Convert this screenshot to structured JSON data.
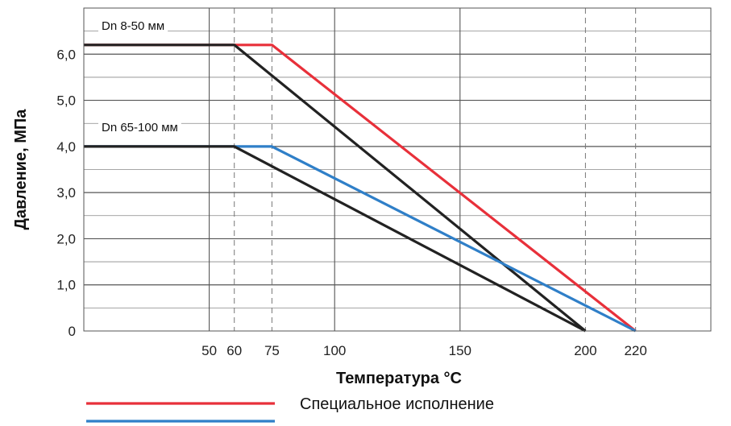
{
  "chart_data": {
    "type": "line",
    "title": "",
    "xlabel": "Температура °C",
    "ylabel": "Давление, МПа",
    "xlim": [
      0,
      250
    ],
    "ylim": [
      0,
      7
    ],
    "x_ticks": [
      50,
      60,
      75,
      100,
      150,
      200,
      220
    ],
    "y_ticks": [
      {
        "value": 0,
        "label": "0"
      },
      {
        "value": 1,
        "label": "1,0"
      },
      {
        "value": 2,
        "label": "2,0"
      },
      {
        "value": 3,
        "label": "3,0"
      },
      {
        "value": 4,
        "label": "4,0"
      },
      {
        "value": 5,
        "label": "5,0"
      },
      {
        "value": 6,
        "label": "6,0"
      }
    ],
    "grid": true,
    "annotations": [
      {
        "text": "Dn 8-50 мм",
        "x": 0,
        "y": 6.2
      },
      {
        "text": "Dn 65-100 мм",
        "x": 0,
        "y": 4.0
      }
    ],
    "series": [
      {
        "name": "Специальное исполнение",
        "group": "Dn 8-50 мм",
        "color": "#e8303a",
        "x": [
          0,
          75,
          220
        ],
        "y": [
          6.2,
          6.2,
          0
        ]
      },
      {
        "group": "Dn 8-50 мм",
        "color": "#222222",
        "x": [
          0,
          60,
          200
        ],
        "y": [
          6.2,
          6.2,
          0
        ]
      },
      {
        "group": "Dn 65-100 мм",
        "color": "#2f7fc8",
        "x": [
          0,
          75,
          220
        ],
        "y": [
          4.0,
          4.0,
          0
        ]
      },
      {
        "group": "Dn 65-100 мм",
        "color": "#222222",
        "x": [
          0,
          60,
          200
        ],
        "y": [
          4.0,
          4.0,
          0
        ]
      }
    ]
  },
  "legend": {
    "items": [
      {
        "color": "#e8303a",
        "label": "Специальное исполнение"
      },
      {
        "color": "#2f7fc8",
        "label": ""
      }
    ]
  }
}
